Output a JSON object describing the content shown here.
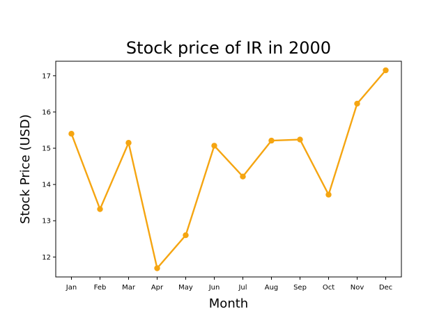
{
  "chart_data": {
    "type": "line",
    "title": "Stock price of IR in 2000",
    "xlabel": "Month",
    "ylabel": "Stock Price (USD)",
    "categories": [
      "Jan",
      "Feb",
      "Mar",
      "Apr",
      "May",
      "Jun",
      "Jul",
      "Aug",
      "Sep",
      "Oct",
      "Nov",
      "Dec"
    ],
    "series": [
      {
        "values": [
          15.4,
          13.32,
          15.15,
          11.69,
          12.6,
          15.07,
          14.22,
          15.21,
          15.24,
          13.72,
          16.23,
          17.15
        ],
        "color": "#f5a511",
        "marker": "circle"
      }
    ],
    "ylim": [
      11.45,
      17.4
    ],
    "yticks": [
      12,
      13,
      14,
      15,
      16,
      17
    ],
    "grid": false,
    "legend": "none"
  }
}
